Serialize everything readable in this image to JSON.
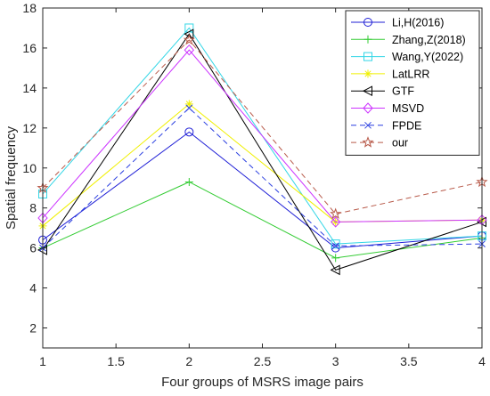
{
  "chart_data": {
    "type": "line",
    "title": "",
    "xlabel": "Four groups of MSRS image pairs",
    "ylabel": "Spatial frequency",
    "xlim": [
      1,
      4
    ],
    "ylim": [
      1,
      18
    ],
    "x": [
      1,
      2,
      3,
      4
    ],
    "x_ticks": [
      "1",
      "1.5",
      "2",
      "2.5",
      "3",
      "3.5",
      "4"
    ],
    "y_ticks": [
      "2",
      "4",
      "6",
      "8",
      "10",
      "12",
      "14",
      "16",
      "18"
    ],
    "grid": false,
    "legend_position": "top-right",
    "series": [
      {
        "name": "Li,H(2016)",
        "values": [
          6.4,
          11.8,
          6.0,
          6.6
        ],
        "color": "#1f1fd6",
        "dash": "solid",
        "marker": "circle"
      },
      {
        "name": "Zhang,Z(2018)",
        "values": [
          6.0,
          9.3,
          5.5,
          6.5
        ],
        "color": "#33cc33",
        "dash": "solid",
        "marker": "plus"
      },
      {
        "name": "Wang,Y(2022)",
        "values": [
          8.7,
          17.0,
          6.2,
          6.6
        ],
        "color": "#33d6e6",
        "dash": "solid",
        "marker": "square"
      },
      {
        "name": "LatLRR",
        "values": [
          7.1,
          13.2,
          7.3,
          7.4
        ],
        "color": "#f0f000",
        "dash": "solid",
        "marker": "star"
      },
      {
        "name": "GTF",
        "values": [
          5.9,
          16.7,
          4.9,
          7.3
        ],
        "color": "#000000",
        "dash": "solid",
        "marker": "triangle-left"
      },
      {
        "name": "MSVD",
        "values": [
          7.5,
          15.9,
          7.3,
          7.4
        ],
        "color": "#cc33ff",
        "dash": "solid",
        "marker": "diamond"
      },
      {
        "name": "FPDE",
        "values": [
          6.0,
          13.0,
          6.1,
          6.2
        ],
        "color": "#2a3fe0",
        "dash": "dashed",
        "marker": "x"
      },
      {
        "name": "our",
        "values": [
          9.0,
          16.4,
          7.7,
          9.3
        ],
        "color": "#b85a4a",
        "dash": "dashed",
        "marker": "pentagram"
      }
    ]
  }
}
